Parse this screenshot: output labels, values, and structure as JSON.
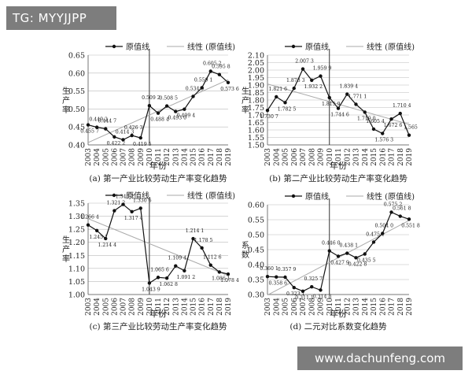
{
  "watermark": {
    "top_label": "TG: MYYJJPP",
    "bottom_label": "www.dachunfeng.com"
  },
  "colors": {
    "data_line": "#111111",
    "trend_line": "#aaaaaa",
    "grid": "#bbbbbb",
    "divider": "#333333"
  },
  "chart_data": [
    {
      "type": "line",
      "caption": "(a) 第一产业比较劳动生产率变化趋势",
      "xlabel": "年份",
      "ylabel": "生产率",
      "categories": [
        "2003",
        "2004",
        "2005",
        "2006",
        "2007",
        "2008",
        "2009",
        "2010",
        "2011",
        "2012",
        "2013",
        "2014",
        "2015",
        "2016",
        "2017",
        "2018",
        "2019"
      ],
      "ylim": [
        0.4,
        0.65
      ],
      "yticks": [
        "0.40",
        "0.45",
        "0.50",
        "0.55",
        "0.60",
        "0.65"
      ],
      "divider_at": "2010",
      "legend": {
        "series_label": "原值线",
        "trend_label": "线性 (原值线)"
      },
      "series": [
        {
          "name": "原值线",
          "values": [
            0.4557,
            0.4492,
            0.4447,
            0.4222,
            0.4143,
            0.4263,
            0.4195,
            0.5092,
            0.4884,
            0.5085,
            0.493,
            0.4994,
            0.5349,
            0.5591,
            0.6052,
            0.5958,
            0.5736
          ],
          "labels": [
            "0.455 7",
            "0.449 2",
            "0.444 7",
            "0.422 2",
            "0.414 3",
            "0.426 3",
            "0.419 5",
            "0.509 2",
            "0.488 4",
            "0.508 5",
            "0.493 0",
            "0.499 4",
            "0.534 9",
            "0.559 1",
            "0.605 2",
            "0.595 8",
            "0.573 6"
          ]
        }
      ]
    },
    {
      "type": "line",
      "caption": "(b) 第二产业比较劳动生产率变化趋势",
      "xlabel": "年份",
      "ylabel": "生产率",
      "categories": [
        "2003",
        "2004",
        "2005",
        "2006",
        "2007",
        "2008",
        "2009",
        "2010",
        "2011",
        "2012",
        "2013",
        "2014",
        "2015",
        "2016",
        "2017",
        "2018",
        "2019"
      ],
      "ylim": [
        1.5,
        2.1
      ],
      "yticks": [
        "1.50",
        "1.55",
        "1.60",
        "1.65",
        "1.70",
        "1.75",
        "1.80",
        "1.85",
        "1.90",
        "1.95",
        "2.00",
        "2.05",
        "2.10"
      ],
      "divider_at": "2010",
      "legend": {
        "series_label": "原值线",
        "trend_label": "线性 (原值线)"
      },
      "series": [
        {
          "name": "原值线",
          "values": [
            1.7307,
            1.8216,
            1.7825,
            1.8783,
            2.0073,
            1.9322,
            1.9599,
            1.8159,
            1.7446,
            1.8394,
            1.7711,
            1.719,
            1.6054,
            1.5763,
            1.6726,
            1.7104,
            1.565
          ],
          "labels": [
            "1.730 7",
            "1.821 6",
            "1.782 5",
            "1.878 3",
            "2.007 3",
            "1.932 2",
            "1.959 9",
            "1.815 9",
            "1.744 6",
            "1.839 4",
            "1.771 1",
            "1.719 0",
            "1.605 4",
            "1.576 3",
            "1.672 6",
            "1.710 4",
            "1.565"
          ]
        }
      ]
    },
    {
      "type": "line",
      "caption": "(c) 第三产业比较劳动生产率变化趋势",
      "xlabel": "年份",
      "ylabel": "生产率",
      "categories": [
        "2003",
        "2004",
        "2005",
        "2006",
        "2007",
        "2008",
        "2009",
        "2010",
        "2011",
        "2012",
        "2013",
        "2014",
        "2015",
        "2016",
        "2017",
        "2018",
        "2019"
      ],
      "ylim": [
        1.0,
        1.35
      ],
      "yticks": [
        "1.00",
        "1.05",
        "1.10",
        "1.15",
        "1.20",
        "1.25",
        "1.30",
        "1.35"
      ],
      "divider_at": "2010",
      "legend": {
        "series_label": "原值线",
        "trend_label": "线性 (原值线)"
      },
      "series": [
        {
          "name": "原值线",
          "values": [
            1.2664,
            1.2451,
            1.2144,
            1.3212,
            1.3452,
            1.3174,
            1.3306,
            1.0439,
            1.0656,
            1.0628,
            1.1094,
            1.0912,
            1.2141,
            1.1785,
            1.1126,
            1.0861,
            1.0784
          ],
          "labels": [
            "1.266 4",
            "1.245 1",
            "1.214 4",
            "1.321 2",
            "1.345 2",
            "1.317 4",
            "1.330 6",
            "1.043 9",
            "1.065 6",
            "1.062 8",
            "1.109 4",
            "1.091 2",
            "1.214 1",
            "1.178 5",
            "1.112 6",
            "1.086 1",
            "1.078 4"
          ]
        }
      ]
    },
    {
      "type": "line",
      "caption": "(d) 二元对比系数变化趋势",
      "xlabel": "年份",
      "ylabel": "系数",
      "categories": [
        "2003",
        "2004",
        "2005",
        "2006",
        "2007",
        "2008",
        "2009",
        "2010",
        "2011",
        "2012",
        "2013",
        "2014",
        "2015",
        "2016",
        "2017",
        "2018",
        "2019"
      ],
      "ylim": [
        0.3,
        0.6
      ],
      "yticks": [
        "0.30",
        "0.35",
        "0.40",
        "0.45",
        "0.50",
        "0.55",
        "0.60"
      ],
      "divider_at": "2010",
      "legend": {
        "series_label": "原值线",
        "trend_label": "线性 (原值线)"
      },
      "series": [
        {
          "name": "原值线",
          "values": [
            0.3601,
            0.3586,
            0.3579,
            0.3231,
            0.3111,
            0.3257,
            0.3148,
            0.446,
            0.4279,
            0.4381,
            0.4228,
            0.4355,
            0.4751,
            0.504,
            0.5752,
            0.5618,
            0.5518
          ],
          "labels": [
            "0.360 1",
            "0.358 6",
            "0.357 9",
            "0.323 1",
            "0.311 1",
            "0.325 7",
            "0.314 8",
            "0.446 0",
            "0.427 9",
            "0.438 1",
            "0.422 8",
            "0.435 5",
            "0.475 1",
            "0.504 0",
            "0.575 2",
            "0.561 8",
            "0.551 8"
          ]
        }
      ]
    }
  ]
}
